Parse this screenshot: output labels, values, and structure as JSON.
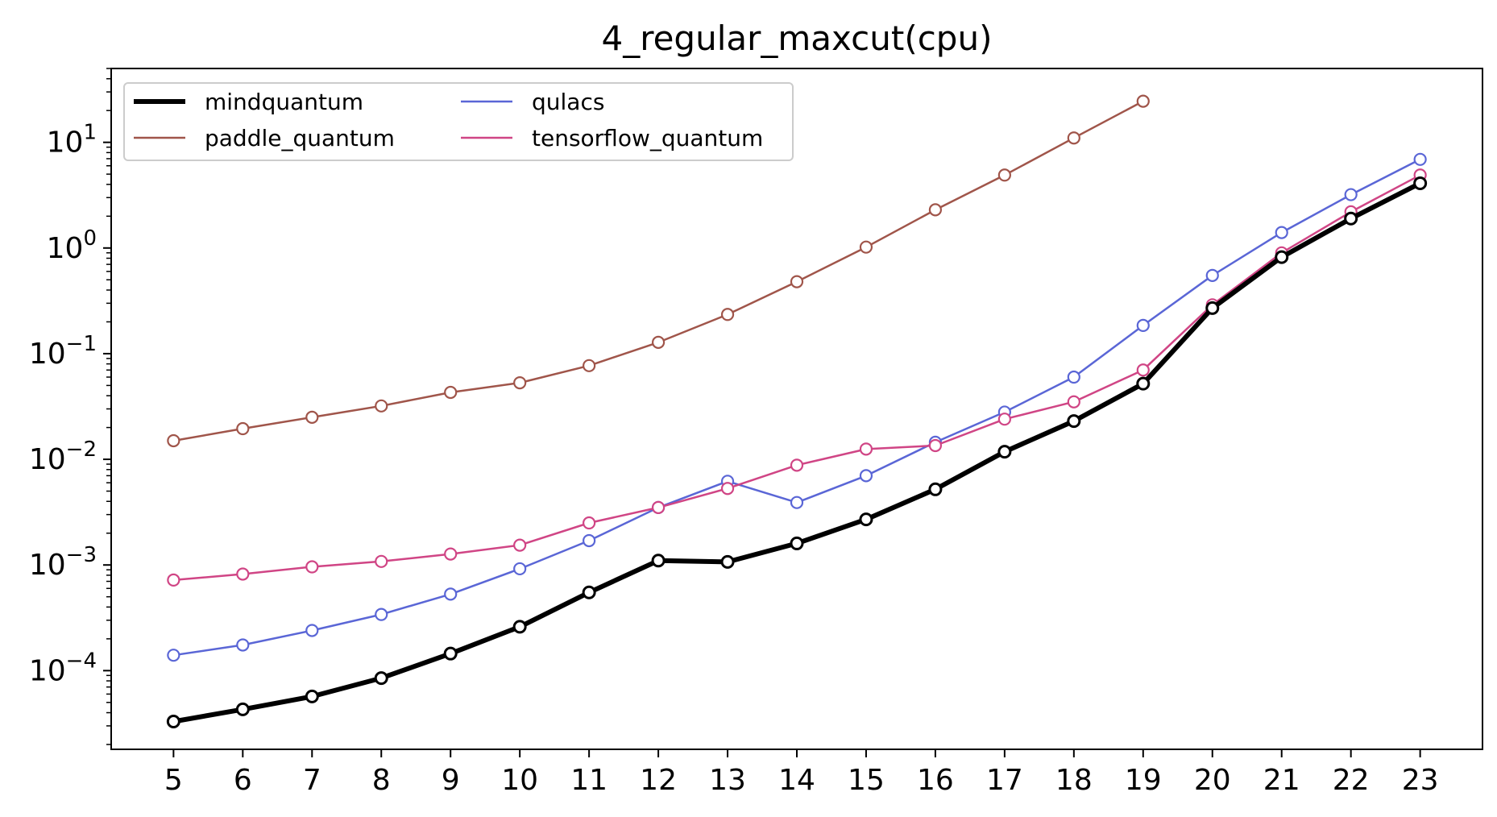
{
  "chart_data": {
    "type": "line",
    "title": "4_regular_maxcut(cpu)",
    "xlabel": "",
    "ylabel": "",
    "yscale": "log",
    "xlim": [
      4.1,
      23.9
    ],
    "ylim": [
      1.8e-05,
      50
    ],
    "x": [
      5,
      6,
      7,
      8,
      9,
      10,
      11,
      12,
      13,
      14,
      15,
      16,
      17,
      18,
      19,
      20,
      21,
      22,
      23
    ],
    "x_tick_labels": [
      "5",
      "6",
      "7",
      "8",
      "9",
      "10",
      "11",
      "12",
      "13",
      "14",
      "15",
      "16",
      "17",
      "18",
      "19",
      "20",
      "21",
      "22",
      "23"
    ],
    "y_ticks": [
      {
        "value": 0.0001,
        "base": "10",
        "exp": "−4"
      },
      {
        "value": 0.001,
        "base": "10",
        "exp": "−3"
      },
      {
        "value": 0.01,
        "base": "10",
        "exp": "−2"
      },
      {
        "value": 0.1,
        "base": "10",
        "exp": "−1"
      },
      {
        "value": 1,
        "base": "10",
        "exp": "0"
      },
      {
        "value": 10,
        "base": "10",
        "exp": "1"
      }
    ],
    "legend": {
      "location": "upper-left",
      "columns": 2
    },
    "series": [
      {
        "name": "mindquantum",
        "color": "#000000",
        "values": [
          3.3e-05,
          4.3e-05,
          5.7e-05,
          8.5e-05,
          0.000145,
          0.00026,
          0.00055,
          0.0011,
          0.00107,
          0.0016,
          0.0027,
          0.0052,
          0.0118,
          0.023,
          0.052,
          0.27,
          0.82,
          1.9,
          4.1
        ]
      },
      {
        "name": "paddle_quantum",
        "color": "#a0554a",
        "values": [
          0.015,
          0.0195,
          0.025,
          0.032,
          0.043,
          0.053,
          0.077,
          0.128,
          0.235,
          0.48,
          1.02,
          2.3,
          4.9,
          11,
          24.5,
          null,
          null,
          null,
          null
        ]
      },
      {
        "name": "qulacs",
        "color": "#5a66d6",
        "values": [
          0.00014,
          0.000175,
          0.00024,
          0.00034,
          0.00053,
          0.00092,
          0.0017,
          0.0035,
          0.0062,
          0.0039,
          0.007,
          0.0145,
          0.028,
          0.06,
          0.185,
          0.55,
          1.4,
          3.2,
          6.9
        ]
      },
      {
        "name": "tensorflow_quantum",
        "color": "#d04585",
        "values": [
          0.00072,
          0.00082,
          0.00096,
          0.00108,
          0.00127,
          0.00154,
          0.0025,
          0.0035,
          0.0053,
          0.0088,
          0.0125,
          0.0135,
          0.024,
          0.035,
          0.07,
          0.29,
          0.9,
          2.2,
          4.9
        ]
      }
    ]
  }
}
